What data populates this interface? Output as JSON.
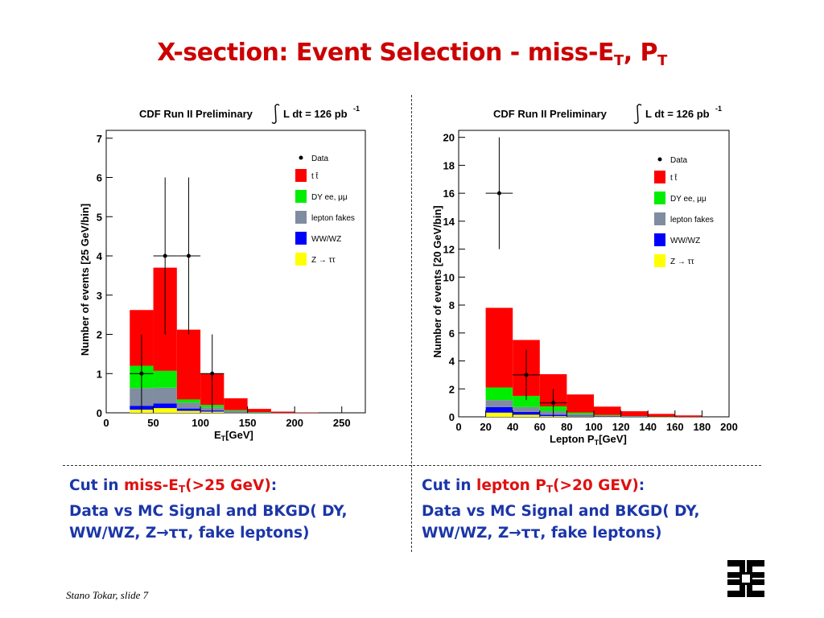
{
  "slide": {
    "title_main": "X-section: Event Selection - ",
    "title_miss": "miss-E",
    "title_sub1": "T",
    "title_comma": ", P",
    "title_sub2": "T",
    "footer": "Stano Tokar, slide 7",
    "logo_icon": "fermilab-logo-icon"
  },
  "captions": [
    {
      "cut_prefix": "Cut in ",
      "cut_var": "miss-E",
      "cut_sub": "T",
      "cut_value": "(>25 GeV)",
      "cut_colon": ":",
      "line2": "Data vs MC Signal and BKGD( DY,",
      "line3": "WW/WZ, Z→ττ, fake leptons)"
    },
    {
      "cut_prefix": "Cut in ",
      "cut_var": "lepton P",
      "cut_sub": "T",
      "cut_value": "(>20 GEV)",
      "cut_colon": ":",
      "line2": "Data vs MC Signal and BKGD( DY,",
      "line3": "WW/WZ, Z→ττ, fake leptons)"
    }
  ],
  "chart_data": [
    {
      "type": "bar",
      "stacked": true,
      "header": "CDF Run II Preliminary",
      "lumi": "L dt = 126 pb",
      "lumi_sup": "-1",
      "xlabel": "E",
      "xlabel_sub": "T",
      "xlabel_unit": "[GeV]",
      "ylabel": "Number of events [25 GeV/bin]",
      "xlim": [
        0,
        275
      ],
      "ylim": [
        0,
        7.2
      ],
      "xticks": [
        0,
        50,
        100,
        150,
        200,
        250
      ],
      "yticks": [
        0,
        1,
        2,
        3,
        4,
        5,
        6,
        7
      ],
      "bin_edges": [
        25,
        50,
        75,
        100,
        125,
        150,
        175,
        200,
        225,
        250
      ],
      "series": [
        {
          "name": "Z → ττ",
          "color": "#ffff00",
          "values": [
            0.08,
            0.12,
            0.05,
            0.03,
            0.01,
            0,
            0,
            0,
            0
          ]
        },
        {
          "name": "WW/WZ",
          "color": "#0000ff",
          "values": [
            0.1,
            0.12,
            0.06,
            0.03,
            0.01,
            0,
            0,
            0,
            0
          ]
        },
        {
          "name": "lepton fakes",
          "color": "#808ca0",
          "values": [
            0.45,
            0.4,
            0.15,
            0.08,
            0.03,
            0.01,
            0,
            0,
            0
          ]
        },
        {
          "name": "DY ee, μμ",
          "color": "#00ee00",
          "values": [
            0.57,
            0.43,
            0.08,
            0.06,
            0.02,
            0.01,
            0,
            0,
            0
          ]
        },
        {
          "name": "t t̄",
          "color": "#ff0000",
          "values": [
            1.42,
            2.63,
            1.78,
            0.8,
            0.3,
            0.08,
            0.03,
            0.01,
            0
          ]
        }
      ],
      "data": {
        "name": "Data",
        "x": [
          37.5,
          62.5,
          87.5,
          112.5
        ],
        "y": [
          1,
          4,
          4,
          1
        ],
        "err_up": [
          1,
          2,
          2,
          1
        ],
        "err_down": [
          1,
          2,
          2,
          1
        ],
        "xerr": 12.5
      }
    },
    {
      "type": "bar",
      "stacked": true,
      "header": "CDF Run II Preliminary",
      "lumi": "L dt = 126 pb",
      "lumi_sup": "-1",
      "xlabel": "Lepton P",
      "xlabel_sub": "T",
      "xlabel_unit": "[GeV]",
      "ylabel": "Number of events [20 GeV/bin]",
      "xlim": [
        0,
        200
      ],
      "ylim": [
        0,
        20.5
      ],
      "xticks": [
        0,
        20,
        40,
        60,
        80,
        100,
        120,
        140,
        160,
        180,
        200
      ],
      "yticks": [
        0,
        2,
        4,
        6,
        8,
        10,
        12,
        14,
        16,
        18,
        20
      ],
      "bin_edges": [
        20,
        40,
        60,
        80,
        100,
        120,
        140,
        160,
        180,
        200
      ],
      "series": [
        {
          "name": "Z → ττ",
          "color": "#ffff00",
          "values": [
            0.3,
            0.15,
            0.05,
            0.03,
            0.01,
            0,
            0,
            0,
            0
          ]
        },
        {
          "name": "WW/WZ",
          "color": "#0000ff",
          "values": [
            0.4,
            0.2,
            0.1,
            0.05,
            0.02,
            0.01,
            0,
            0,
            0
          ]
        },
        {
          "name": "lepton fakes",
          "color": "#808ca0",
          "values": [
            0.5,
            0.35,
            0.25,
            0.1,
            0.05,
            0.02,
            0,
            0,
            0
          ]
        },
        {
          "name": "DY ee, μμ",
          "color": "#00ee00",
          "values": [
            0.9,
            0.8,
            0.35,
            0.12,
            0.05,
            0.02,
            0.01,
            0,
            0
          ]
        },
        {
          "name": "t t̄",
          "color": "#ff0000",
          "values": [
            5.7,
            4.0,
            2.3,
            1.3,
            0.6,
            0.35,
            0.2,
            0.1,
            0
          ]
        }
      ],
      "data": {
        "name": "Data",
        "x": [
          30,
          50,
          70
        ],
        "y": [
          16,
          3,
          1
        ],
        "err_up": [
          4,
          1.8,
          1
        ],
        "err_down": [
          4,
          1.8,
          1
        ],
        "xerr": 10
      }
    }
  ]
}
